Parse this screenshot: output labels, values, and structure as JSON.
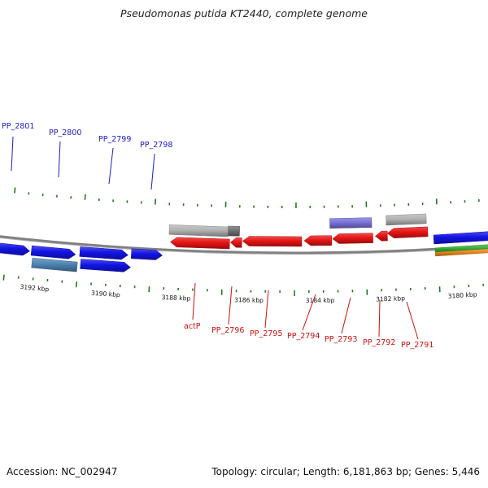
{
  "title": "Pseudomonas putida KT2440, complete genome",
  "footer": {
    "accession": "Accession: NC_002947",
    "summary": "Topology: circular; Length: 6,181,863 bp; Genes: 5,446"
  },
  "colors": {
    "forward_cds": "#1414e6",
    "reverse_cds": "#e81414",
    "forward_label": "#1a1acc",
    "reverse_label": "#cc1111",
    "tick": "#1f7a1f",
    "backbone": "#808080",
    "grey_feature": "#b4b4b4",
    "purple_feature": "#7a72d8",
    "steel_feature": "#4d84b3",
    "orange_feature": "#f08a1e",
    "green_feature": "#3cb43c"
  },
  "ticks": {
    "labels": [
      "3192 kbp",
      "3190 kbp",
      "3188 kbp",
      "3186 kbp",
      "3184 kbp",
      "3182 kbp",
      "3180 kbp"
    ]
  },
  "forward_genes": [
    "PP_2801",
    "PP_2800",
    "PP_2799",
    "PP_2798"
  ],
  "reverse_genes": [
    "actP",
    "PP_2796",
    "PP_2795",
    "PP_2794",
    "PP_2793",
    "PP_2792",
    "PP_2791"
  ]
}
